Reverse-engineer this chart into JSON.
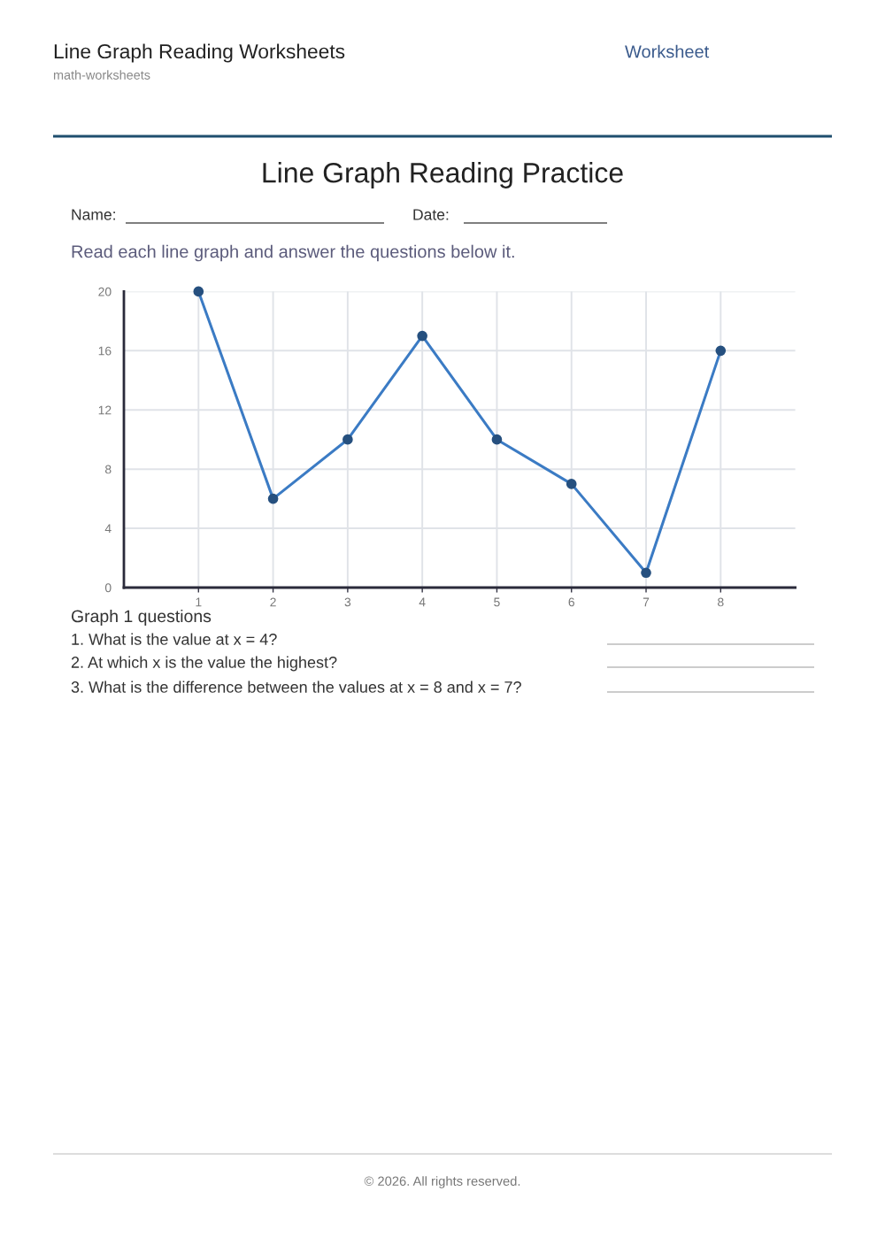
{
  "chart_data": {
    "type": "line",
    "title": "Line Graph Reading Practice",
    "subtitle": "Read each line graph and answer the questions below it.",
    "x": [
      1,
      2,
      3,
      4,
      5,
      6,
      7,
      8
    ],
    "series": [
      {
        "color": "#3b7bc4",
        "values": [
          20,
          6,
          10,
          17,
          10,
          7,
          1,
          16
        ]
      }
    ],
    "xlim": [
      0,
      9
    ],
    "xticks": [
      1,
      2,
      3,
      4,
      5,
      6,
      7,
      8
    ],
    "ylim": [
      0,
      20
    ],
    "yticks": [
      0,
      4,
      8,
      12,
      16,
      20
    ],
    "grid": true,
    "marker": "circle",
    "line_style": "solid",
    "annotations": [
      "Line Graph Reading Worksheets",
      "Worksheet",
      "math-worksheets",
      "Name:",
      "Date:",
      "Graph 1 questions",
      "1. What is the value at x = 4?",
      "2. At which x is the value the highest?",
      "3. What is the difference between the values at x = 8 and x = 7?",
      "© 2026. All rights reserved."
    ]
  }
}
